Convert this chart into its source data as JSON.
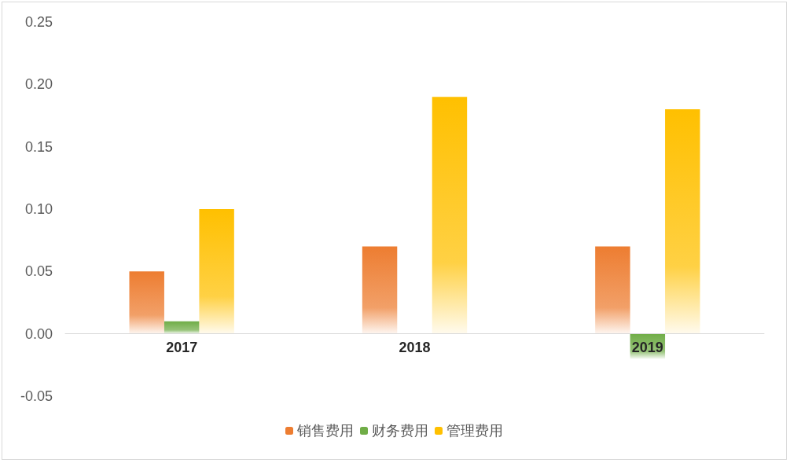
{
  "chart_data": {
    "type": "bar",
    "categories": [
      "2017",
      "2018",
      "2019"
    ],
    "series": [
      {
        "name": "销售费用",
        "color": "#ed7d31",
        "values": [
          0.05,
          0.07,
          0.07
        ]
      },
      {
        "name": "财务费用",
        "color": "#70ad47",
        "values": [
          0.01,
          0,
          -0.02
        ]
      },
      {
        "name": "管理费用",
        "color": "#ffc000",
        "values": [
          0.1,
          0.19,
          0.18
        ]
      }
    ],
    "ylim": [
      -0.05,
      0.25
    ],
    "yticks": [
      {
        "value": -0.05,
        "label": "-0.05"
      },
      {
        "value": 0,
        "label": "0.00"
      },
      {
        "value": 0.05,
        "label": "0.05"
      },
      {
        "value": 0.1,
        "label": "0.10"
      },
      {
        "value": 0.15,
        "label": "0.15"
      },
      {
        "value": 0.2,
        "label": "0.20"
      },
      {
        "value": 0.25,
        "label": "0.25"
      }
    ],
    "grid": false,
    "legend": "bottom"
  }
}
